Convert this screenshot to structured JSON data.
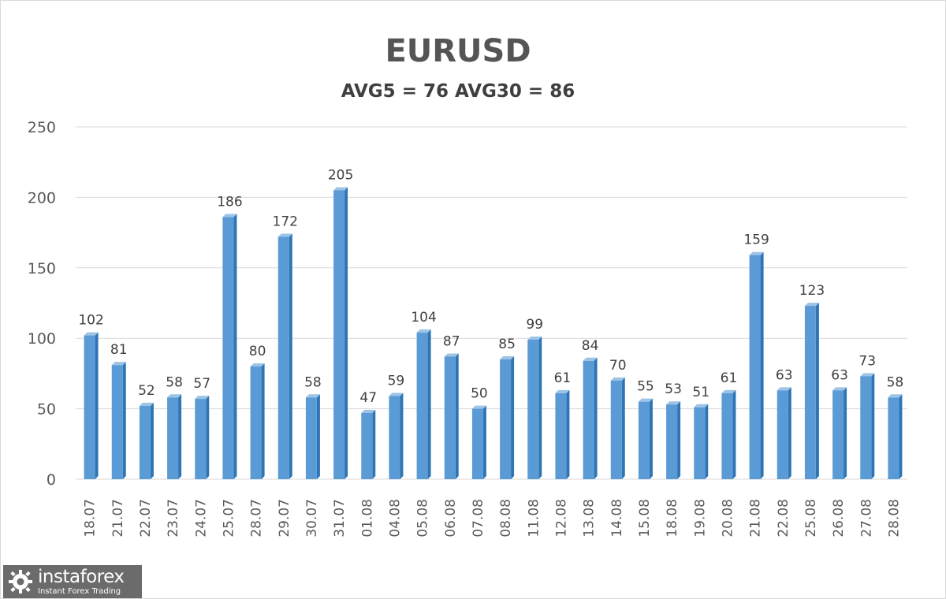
{
  "chart_data": {
    "type": "bar",
    "title": "EURUSD",
    "subtitle": "AVG5 = 76 AVG30 = 86",
    "xlabel": "",
    "ylabel": "",
    "ylim": [
      0,
      250
    ],
    "yticks": [
      0,
      50,
      100,
      150,
      200,
      250
    ],
    "grid": true,
    "legend": "none",
    "categories": [
      "18.07",
      "21.07",
      "22.07",
      "23.07",
      "24.07",
      "25.07",
      "28.07",
      "29.07",
      "30.07",
      "31.07",
      "01.08",
      "04.08",
      "05.08",
      "06.08",
      "07.08",
      "08.08",
      "11.08",
      "12.08",
      "13.08",
      "14.08",
      "15.08",
      "18.08",
      "19.08",
      "20.08",
      "21.08",
      "22.08",
      "25.08",
      "26.08",
      "27.08",
      "28.08"
    ],
    "values": [
      102,
      81,
      52,
      58,
      57,
      186,
      80,
      172,
      58,
      205,
      47,
      59,
      104,
      87,
      50,
      85,
      99,
      61,
      84,
      70,
      55,
      53,
      51,
      61,
      159,
      63,
      123,
      63,
      73,
      58
    ],
    "colors": {
      "bar_front": "#5b9bd5",
      "bar_side": "#2e75b6",
      "bar_top": "#9dc3e6"
    }
  },
  "watermark": {
    "brand": "instaforex",
    "tagline": "Instant Forex Trading"
  }
}
